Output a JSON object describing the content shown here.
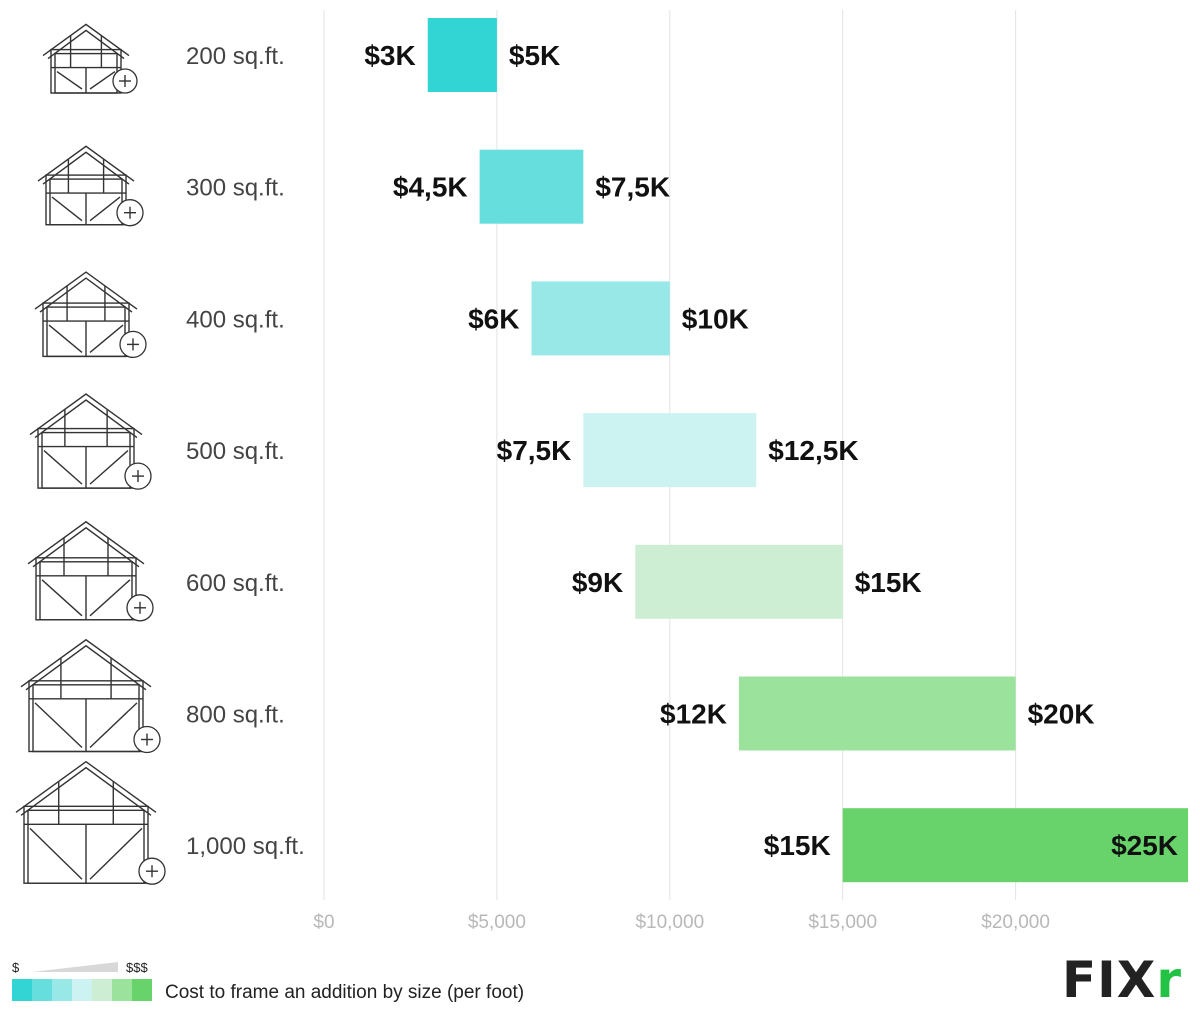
{
  "chart_data": {
    "type": "bar",
    "orientation": "horizontal-range",
    "categories": [
      "200 sq.ft.",
      "300 sq.ft.",
      "400 sq.ft.",
      "500 sq.ft.",
      "600 sq.ft.",
      "800 sq.ft.",
      "1,000 sq.ft."
    ],
    "low": [
      3000,
      4500,
      6000,
      7500,
      9000,
      12000,
      15000
    ],
    "high": [
      5000,
      7500,
      10000,
      12500,
      15000,
      20000,
      25000
    ],
    "low_labels": [
      "$3K",
      "$4,5K",
      "$6K",
      "$7,5K",
      "$9K",
      "$12K",
      "$15K"
    ],
    "high_labels": [
      "$5K",
      "$7,5K",
      "$10K",
      "$12,5K",
      "$15K",
      "$20K",
      "$25K"
    ],
    "colors": [
      "#33d4d4",
      "#66dede",
      "#99e8e8",
      "#ccf2f2",
      "#cdeed2",
      "#9be29d",
      "#68d26b"
    ],
    "xticks": [
      0,
      5000,
      10000,
      15000,
      20000
    ],
    "xtick_labels": [
      "$0",
      "$5,000",
      "$10,000",
      "$15,000",
      "$20,000"
    ],
    "xlim": [
      0,
      25000
    ],
    "grid": true,
    "title": "",
    "xlabel": "",
    "ylabel": ""
  },
  "legend": {
    "low_symbol": "$",
    "high_symbol": "$$$",
    "swatches": [
      "#33d4d4",
      "#66dede",
      "#99e8e8",
      "#ccf2f2",
      "#cdeed2",
      "#9be29d",
      "#68d26b"
    ]
  },
  "caption": "Cost to frame an addition by size (per foot)",
  "logo": {
    "main": "FIX",
    "accent": "r"
  },
  "icons": [
    "house-frame-addition-icon"
  ]
}
